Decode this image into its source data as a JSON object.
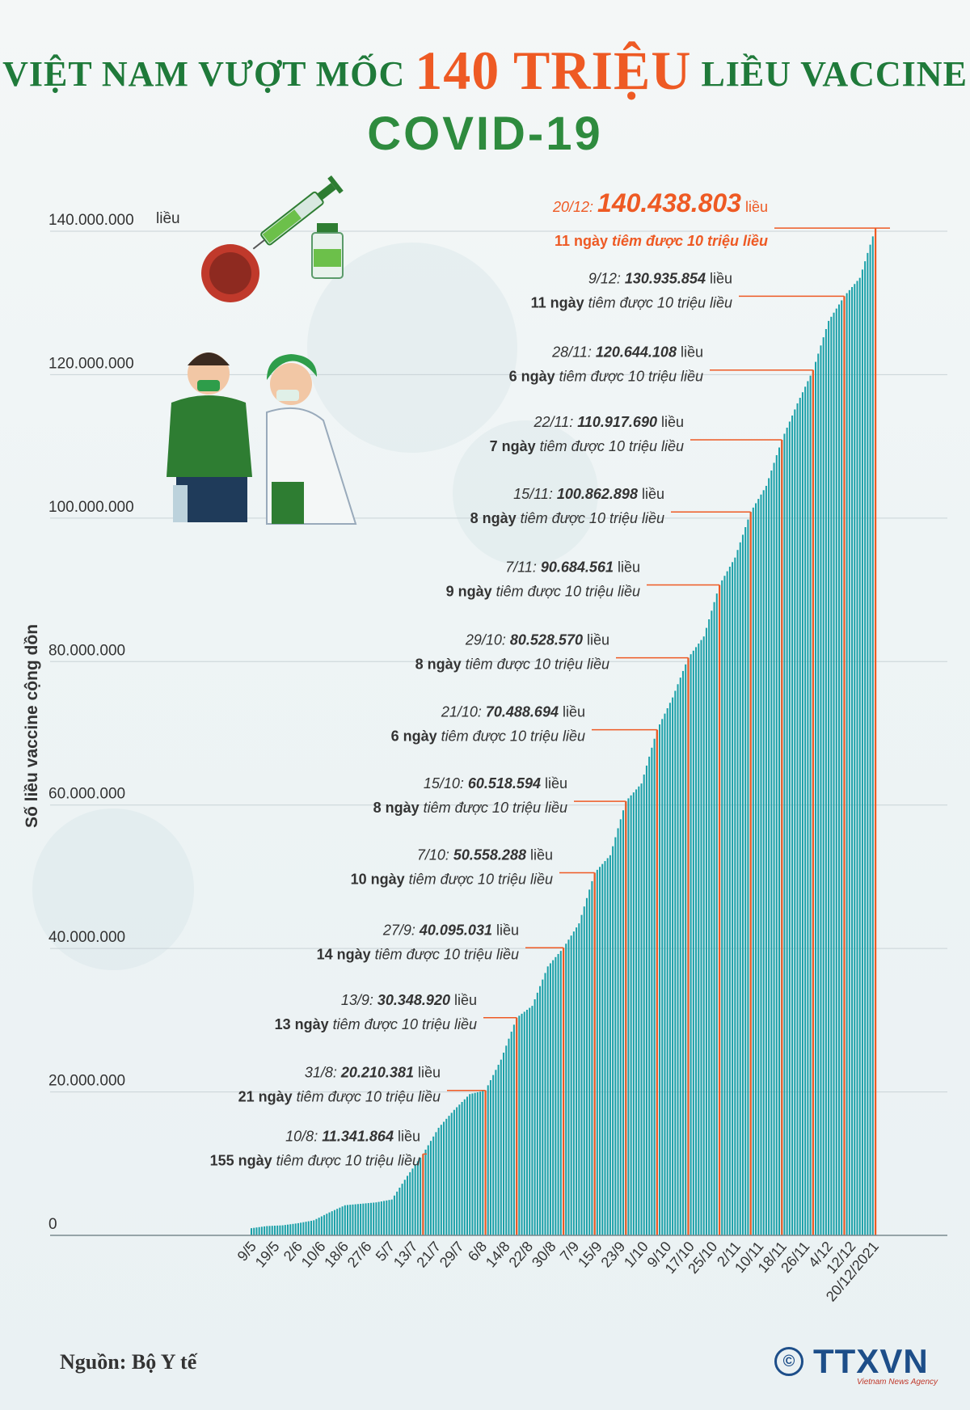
{
  "header": {
    "title_prefix": "VIỆT NAM VƯỢT MỐC",
    "title_highlight": "140 TRIỆU",
    "title_suffix": "LIỀU VACCINE",
    "subtitle": "COVID-19"
  },
  "footer": {
    "source": "Nguồn: Bộ Y tế",
    "logo_text": "TTXVN",
    "logo_subtext": "Vietnam News Agency",
    "copyright_symbol": "©"
  },
  "colors": {
    "bar": "#1aa0a8",
    "bar_highlight": "#ee5a24",
    "title_green": "#1f7a3a",
    "accent_orange": "#ee5a24"
  },
  "chart_data": {
    "type": "bar",
    "ylabel": "Số liều vaccine cộng dồn",
    "yunit": "liều",
    "ylim": [
      0,
      140000000
    ],
    "ytick_labels": [
      "0",
      "20.000.000",
      "40.000.000",
      "60.000.000",
      "80.000.000",
      "100.000.000",
      "120.000.000",
      "140.000.000"
    ],
    "grid": true,
    "xtick_labels": [
      "9/5",
      "19/5",
      "2/6",
      "10/6",
      "18/6",
      "27/6",
      "5/7",
      "13/7",
      "21/7",
      "29/7",
      "6/8",
      "14/8",
      "22/8",
      "30/8",
      "7/9",
      "15/9",
      "23/9",
      "1/10",
      "9/10",
      "17/10",
      "25/10",
      "2/11",
      "10/11",
      "18/11",
      "26/11",
      "4/12",
      "12/12",
      "20/12/2021"
    ],
    "x": [
      "9/5",
      "19/5",
      "2/6",
      "10/6",
      "18/6",
      "27/6",
      "5/7",
      "13/7",
      "21/7",
      "29/7",
      "6/8",
      "10/8",
      "14/8",
      "22/8",
      "30/8",
      "31/8",
      "7/9",
      "13/9",
      "15/9",
      "23/9",
      "27/9",
      "1/10",
      "7/10",
      "9/10",
      "15/10",
      "17/10",
      "21/10",
      "25/10",
      "29/10",
      "2/11",
      "7/11",
      "10/11",
      "15/11",
      "18/11",
      "22/11",
      "26/11",
      "28/11",
      "4/12",
      "9/12",
      "12/12",
      "20/12"
    ],
    "values": [
      1000000,
      1300000,
      1400000,
      1700000,
      2100000,
      3200000,
      4200000,
      4400000,
      4600000,
      5000000,
      8300000,
      11341864,
      15000000,
      17500000,
      19700000,
      20210381,
      24500000,
      30348920,
      32000000,
      37500000,
      40095031,
      43500000,
      50558288,
      53000000,
      60518594,
      63000000,
      70488694,
      75000000,
      80528570,
      83500000,
      90684561,
      94500000,
      100862898,
      104500000,
      110917690,
      116000000,
      120644108,
      127500000,
      130935854,
      133500000,
      140438803
    ],
    "annotations": [
      {
        "date": "10/8",
        "value_text": "11.341.864",
        "unit": "liều",
        "note": "155 ngày tiêm được 10 triệu liều",
        "y": 11341864
      },
      {
        "date": "31/8",
        "value_text": "20.210.381",
        "unit": "liều",
        "note": "21 ngày tiêm được 10 triệu liều",
        "y": 20210381
      },
      {
        "date": "13/9",
        "value_text": "30.348.920",
        "unit": "liều",
        "note": "13 ngày tiêm được 10 triệu liều",
        "y": 30348920
      },
      {
        "date": "27/9",
        "value_text": "40.095.031",
        "unit": "liều",
        "note": "14 ngày tiêm được 10 triệu liều",
        "y": 40095031
      },
      {
        "date": "7/10",
        "value_text": "50.558.288",
        "unit": "liều",
        "note": "10 ngày tiêm được 10 triệu liều",
        "y": 50558288
      },
      {
        "date": "15/10",
        "value_text": "60.518.594",
        "unit": "liều",
        "note": "8 ngày tiêm được 10 triệu liều",
        "y": 60518594
      },
      {
        "date": "21/10",
        "value_text": "70.488.694",
        "unit": "liều",
        "note": "6 ngày tiêm được 10 triệu liều",
        "y": 70488694
      },
      {
        "date": "29/10",
        "value_text": "80.528.570",
        "unit": "liều",
        "note": "8 ngày tiêm được 10 triệu liều",
        "y": 80528570
      },
      {
        "date": "7/11",
        "value_text": "90.684.561",
        "unit": "liều",
        "note": "9 ngày tiêm được 10 triệu liều",
        "y": 90684561
      },
      {
        "date": "15/11",
        "value_text": "100.862.898",
        "unit": "liều",
        "note": "8 ngày tiêm được 10 triệu liều",
        "y": 100862898
      },
      {
        "date": "22/11",
        "value_text": "110.917.690",
        "unit": "liều",
        "note": "7 ngày tiêm được 10 triệu liều",
        "y": 110917690
      },
      {
        "date": "28/11",
        "value_text": "120.644.108",
        "unit": "liều",
        "note": "6 ngày tiêm được 10 triệu liều",
        "y": 120644108
      },
      {
        "date": "9/12",
        "value_text": "130.935.854",
        "unit": "liều",
        "note": "11 ngày tiêm được 10 triệu liều",
        "y": 130935854
      },
      {
        "date": "20/12",
        "value_text": "140.438.803",
        "unit": "liều",
        "note": "11 ngày tiêm được 10 triệu liều",
        "y": 140438803,
        "highlight": true
      }
    ]
  }
}
